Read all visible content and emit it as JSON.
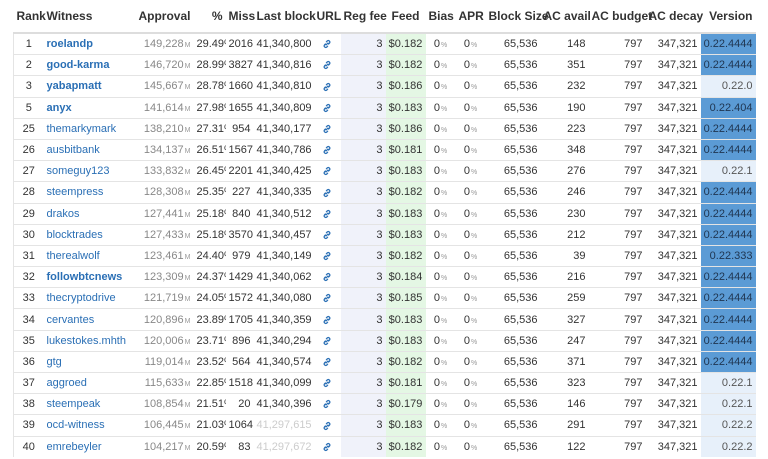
{
  "header": [
    "Rank",
    "Witness",
    "Approval",
    "%",
    "Miss",
    "Last block",
    "URL",
    "Reg fee",
    "Feed",
    "Bias",
    "APR",
    "Block Size",
    "AC avail",
    "AC budget",
    "AC decay",
    "Version"
  ],
  "units": {
    "approval": "M",
    "bias": "%",
    "apr": "%"
  },
  "rows": [
    {
      "rank": 1,
      "witness": "roelandp",
      "approval": "149,228",
      "pct": "29.49%",
      "miss": 2016,
      "last_block": "41,340,800",
      "reg_fee": 3,
      "feed": "$0.182",
      "bias": 0,
      "apr": 0,
      "block_size": "65,536",
      "ac_avail": 148,
      "ac_budget": 797,
      "ac_decay": "347,321",
      "version": "0.22.4444",
      "bold": true,
      "version_current": true
    },
    {
      "rank": 2,
      "witness": "good-karma",
      "approval": "146,720",
      "pct": "28.99%",
      "miss": 3827,
      "last_block": "41,340,816",
      "reg_fee": 3,
      "feed": "$0.182",
      "bias": 0,
      "apr": 0,
      "block_size": "65,536",
      "ac_avail": 351,
      "ac_budget": 797,
      "ac_decay": "347,321",
      "version": "0.22.4444",
      "bold": true,
      "version_current": true
    },
    {
      "rank": 3,
      "witness": "yabapmatt",
      "approval": "145,667",
      "pct": "28.78%",
      "miss": 1660,
      "last_block": "41,340,810",
      "reg_fee": 3,
      "feed": "$0.186",
      "bias": 0,
      "apr": 0,
      "block_size": "65,536",
      "ac_avail": 232,
      "ac_budget": 797,
      "ac_decay": "347,321",
      "version": "0.22.0",
      "bold": true,
      "version_current": false
    },
    {
      "rank": 5,
      "witness": "anyx",
      "approval": "141,614",
      "pct": "27.98%",
      "miss": 1655,
      "last_block": "41,340,809",
      "reg_fee": 3,
      "feed": "$0.183",
      "bias": 0,
      "apr": 0,
      "block_size": "65,536",
      "ac_avail": 190,
      "ac_budget": 797,
      "ac_decay": "347,321",
      "version": "0.22.404",
      "bold": true,
      "version_current": true
    },
    {
      "rank": 25,
      "witness": "themarkymark",
      "approval": "138,210",
      "pct": "27.31%",
      "miss": 954,
      "last_block": "41,340,177",
      "reg_fee": 3,
      "feed": "$0.186",
      "bias": 0,
      "apr": 0,
      "block_size": "65,536",
      "ac_avail": 223,
      "ac_budget": 797,
      "ac_decay": "347,321",
      "version": "0.22.4444",
      "version_current": true
    },
    {
      "rank": 26,
      "witness": "ausbitbank",
      "approval": "134,137",
      "pct": "26.51%",
      "miss": 1567,
      "last_block": "41,340,786",
      "reg_fee": 3,
      "feed": "$0.181",
      "bias": 0,
      "apr": 0,
      "block_size": "65,536",
      "ac_avail": 348,
      "ac_budget": 797,
      "ac_decay": "347,321",
      "version": "0.22.4444",
      "version_current": true
    },
    {
      "rank": 27,
      "witness": "someguy123",
      "approval": "133,832",
      "pct": "26.45%",
      "miss": 2201,
      "last_block": "41,340,425",
      "reg_fee": 3,
      "feed": "$0.183",
      "bias": 0,
      "apr": 0,
      "block_size": "65,536",
      "ac_avail": 276,
      "ac_budget": 797,
      "ac_decay": "347,321",
      "version": "0.22.1",
      "version_current": false
    },
    {
      "rank": 28,
      "witness": "steempress",
      "approval": "128,308",
      "pct": "25.35%",
      "miss": 227,
      "last_block": "41,340,335",
      "reg_fee": 3,
      "feed": "$0.182",
      "bias": 0,
      "apr": 0,
      "block_size": "65,536",
      "ac_avail": 246,
      "ac_budget": 797,
      "ac_decay": "347,321",
      "version": "0.22.4444",
      "version_current": true
    },
    {
      "rank": 29,
      "witness": "drakos",
      "approval": "127,441",
      "pct": "25.18%",
      "miss": 840,
      "last_block": "41,340,512",
      "reg_fee": 3,
      "feed": "$0.183",
      "bias": 0,
      "apr": 0,
      "block_size": "65,536",
      "ac_avail": 230,
      "ac_budget": 797,
      "ac_decay": "347,321",
      "version": "0.22.4444",
      "version_current": true
    },
    {
      "rank": 30,
      "witness": "blocktrades",
      "approval": "127,433",
      "pct": "25.18%",
      "miss": 3570,
      "last_block": "41,340,457",
      "reg_fee": 3,
      "feed": "$0.183",
      "bias": 0,
      "apr": 0,
      "block_size": "65,536",
      "ac_avail": 212,
      "ac_budget": 797,
      "ac_decay": "347,321",
      "version": "0.22.4444",
      "version_current": true
    },
    {
      "rank": 31,
      "witness": "therealwolf",
      "approval": "123,461",
      "pct": "24.40%",
      "miss": 979,
      "last_block": "41,340,149",
      "reg_fee": 3,
      "feed": "$0.182",
      "bias": 0,
      "apr": 0,
      "block_size": "65,536",
      "ac_avail": 39,
      "ac_budget": 797,
      "ac_decay": "347,321",
      "version": "0.22.333",
      "version_current": true
    },
    {
      "rank": 32,
      "witness": "followbtcnews",
      "approval": "123,309",
      "pct": "24.37%",
      "miss": 1429,
      "last_block": "41,340,062",
      "reg_fee": 3,
      "feed": "$0.184",
      "bias": 0,
      "apr": 0,
      "block_size": "65,536",
      "ac_avail": 216,
      "ac_budget": 797,
      "ac_decay": "347,321",
      "version": "0.22.4444",
      "bold": true,
      "version_current": true
    },
    {
      "rank": 33,
      "witness": "thecryptodrive",
      "approval": "121,719",
      "pct": "24.05%",
      "miss": 1572,
      "last_block": "41,340,080",
      "reg_fee": 3,
      "feed": "$0.185",
      "bias": 0,
      "apr": 0,
      "block_size": "65,536",
      "ac_avail": 259,
      "ac_budget": 797,
      "ac_decay": "347,321",
      "version": "0.22.4444",
      "version_current": true
    },
    {
      "rank": 34,
      "witness": "cervantes",
      "approval": "120,896",
      "pct": "23.89%",
      "miss": 1705,
      "last_block": "41,340,359",
      "reg_fee": 3,
      "feed": "$0.183",
      "bias": 0,
      "apr": 0,
      "block_size": "65,536",
      "ac_avail": 327,
      "ac_budget": 797,
      "ac_decay": "347,321",
      "version": "0.22.4444",
      "version_current": true
    },
    {
      "rank": 35,
      "witness": "lukestokes.mhth",
      "approval": "120,006",
      "pct": "23.71%",
      "miss": 896,
      "last_block": "41,340,294",
      "reg_fee": 3,
      "feed": "$0.183",
      "bias": 0,
      "apr": 0,
      "block_size": "65,536",
      "ac_avail": 247,
      "ac_budget": 797,
      "ac_decay": "347,321",
      "version": "0.22.4444",
      "version_current": true
    },
    {
      "rank": 36,
      "witness": "gtg",
      "approval": "119,014",
      "pct": "23.52%",
      "miss": 564,
      "last_block": "41,340,574",
      "reg_fee": 3,
      "feed": "$0.182",
      "bias": 0,
      "apr": 0,
      "block_size": "65,536",
      "ac_avail": 371,
      "ac_budget": 797,
      "ac_decay": "347,321",
      "version": "0.22.4444",
      "version_current": true
    },
    {
      "rank": 37,
      "witness": "aggroed",
      "approval": "115,633",
      "pct": "22.85%",
      "miss": 1518,
      "last_block": "41,340,099",
      "reg_fee": 3,
      "feed": "$0.181",
      "bias": 0,
      "apr": 0,
      "block_size": "65,536",
      "ac_avail": 323,
      "ac_budget": 797,
      "ac_decay": "347,321",
      "version": "0.22.1",
      "version_current": false
    },
    {
      "rank": 38,
      "witness": "steempeak",
      "approval": "108,854",
      "pct": "21.51%",
      "miss": 20,
      "last_block": "41,340,396",
      "reg_fee": 3,
      "feed": "$0.179",
      "bias": 0,
      "apr": 0,
      "block_size": "65,536",
      "ac_avail": 146,
      "ac_budget": 797,
      "ac_decay": "347,321",
      "version": "0.22.1",
      "version_current": false
    },
    {
      "rank": 39,
      "witness": "ocd-witness",
      "approval": "106,445",
      "pct": "21.03%",
      "miss": 1064,
      "last_block": "41,297,615",
      "stale": true,
      "reg_fee": 3,
      "feed": "$0.183",
      "bias": 0,
      "apr": 0,
      "block_size": "65,536",
      "ac_avail": 291,
      "ac_budget": 797,
      "ac_decay": "347,321",
      "version": "0.22.2",
      "version_current": false
    },
    {
      "rank": 40,
      "witness": "emrebeyler",
      "approval": "104,217",
      "pct": "20.59%",
      "miss": 83,
      "last_block": "41,297,672",
      "stale": true,
      "reg_fee": 3,
      "feed": "$0.182",
      "bias": 0,
      "apr": 0,
      "block_size": "65,536",
      "ac_avail": 122,
      "ac_budget": 797,
      "ac_decay": "347,321",
      "version": "0.22.2",
      "version_current": false
    }
  ]
}
